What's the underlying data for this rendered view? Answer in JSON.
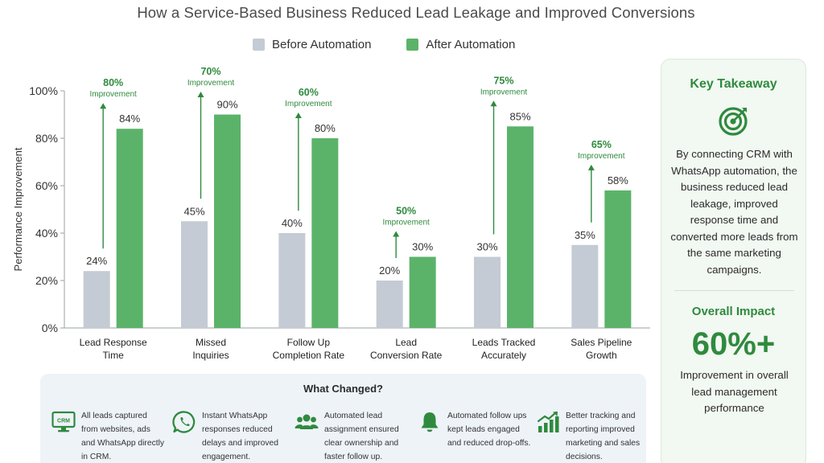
{
  "title": "How a Service-Based Business Reduced Lead Leakage and Improved Conversions",
  "colors": {
    "before": "#c4cbd4",
    "after": "#5bb36a",
    "accent": "#2f8a3e"
  },
  "chart_data": {
    "type": "bar",
    "ylabel": "Performance Improvement",
    "ylim": [
      0,
      100
    ],
    "yticks": [
      "0%",
      "20%",
      "40%",
      "60%",
      "80%",
      "100%"
    ],
    "categories": [
      [
        "Lead Response",
        "Time"
      ],
      [
        "Missed",
        "Inquiries"
      ],
      [
        "Follow Up",
        "Completion Rate"
      ],
      [
        "Lead",
        "Conversion Rate"
      ],
      [
        "Leads Tracked",
        "Accurately"
      ],
      [
        "Sales Pipeline",
        "Growth"
      ]
    ],
    "series": [
      {
        "name": "Before Automation",
        "values": [
          24,
          45,
          40,
          20,
          30,
          35
        ]
      },
      {
        "name": "After Automation",
        "values": [
          84,
          90,
          80,
          30,
          85,
          58
        ]
      }
    ],
    "annotations": [
      {
        "value": "80%",
        "label": "Improvement"
      },
      {
        "value": "70%",
        "label": "Improvement"
      },
      {
        "value": "60%",
        "label": "Improvement"
      },
      {
        "value": "50%",
        "label": "Improvement"
      },
      {
        "value": "75%",
        "label": "Improvement"
      },
      {
        "value": "65%",
        "label": "Improvement"
      }
    ],
    "legend": "top"
  },
  "takeaway": {
    "title": "Key Takeaway",
    "icon": "target-icon",
    "text": "By connecting CRM with WhatsApp automation, the business reduced lead leakage, improved response time and converted more leads from the same marketing campaigns.",
    "impact_title": "Overall Impact",
    "impact_value": "60%+",
    "impact_text": "Improvement in overall lead management performance"
  },
  "changes": {
    "title": "What Changed?",
    "items": [
      {
        "icon": "crm-monitor-icon",
        "badge": "CRM",
        "text": "All leads captured from websites, ads and WhatsApp directly in CRM."
      },
      {
        "icon": "whatsapp-icon",
        "text": "Instant WhatsApp responses reduced delays and improved engagement."
      },
      {
        "icon": "team-icon",
        "text": "Automated lead assignment ensured clear ownership and faster follow up."
      },
      {
        "icon": "bell-icon",
        "text": "Automated follow ups kept leads engaged and reduced drop-offs."
      },
      {
        "icon": "growth-chart-icon",
        "text": "Better tracking and reporting improved marketing and sales decisions."
      }
    ]
  }
}
